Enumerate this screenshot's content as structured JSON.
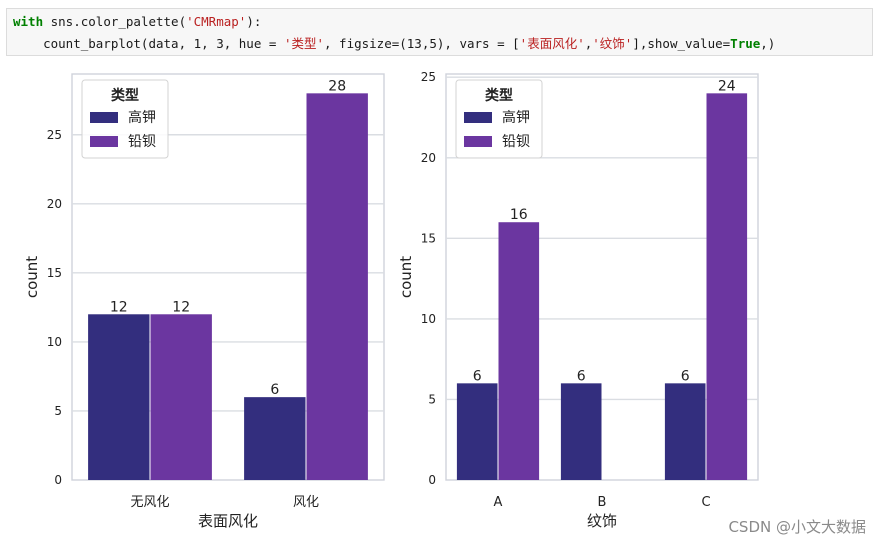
{
  "code": {
    "line1": {
      "keyword": "with",
      "pre": " sns.color_palette(",
      "palette": "'CMRmap'",
      "post": "):"
    },
    "line2": {
      "p1": "    count_barplot(data, 1, 3, hue = ",
      "hue": "'类型'",
      "p2": ", figsize=(13,5), vars = [",
      "v1": "'表面风化'",
      "comma": ",",
      "v2": "'纹饰'",
      "p3": "],show_value=",
      "tv": "True",
      "p4": ",)"
    }
  },
  "colors": {
    "series_1": "#332e7e",
    "series_2": "#6b36a0",
    "grid": "#dadde2",
    "frame": "#cfd3db"
  },
  "chart_data": [
    {
      "type": "bar",
      "xlabel": "表面风化",
      "ylabel": "count",
      "categories": [
        "无风化",
        "风化"
      ],
      "ylim": [
        0,
        29.4
      ],
      "yticks": [
        0,
        5,
        10,
        15,
        20,
        25
      ],
      "grid": true,
      "legend": {
        "title": "类型",
        "placement": "top-left"
      },
      "series": [
        {
          "name": "高钾",
          "values": [
            12,
            6
          ]
        },
        {
          "name": "铅钡",
          "values": [
            12,
            28
          ]
        }
      ]
    },
    {
      "type": "bar",
      "xlabel": "纹饰",
      "ylabel": "count",
      "categories": [
        "A",
        "B",
        "C"
      ],
      "ylim": [
        0,
        25.2
      ],
      "yticks": [
        0,
        5,
        10,
        15,
        20,
        25
      ],
      "grid": true,
      "legend": {
        "title": "类型",
        "placement": "top-left"
      },
      "series": [
        {
          "name": "高钾",
          "values": [
            6,
            6,
            6
          ]
        },
        {
          "name": "铅钡",
          "values": [
            16,
            null,
            24
          ]
        }
      ]
    }
  ],
  "watermark": "CSDN @小文大数据"
}
